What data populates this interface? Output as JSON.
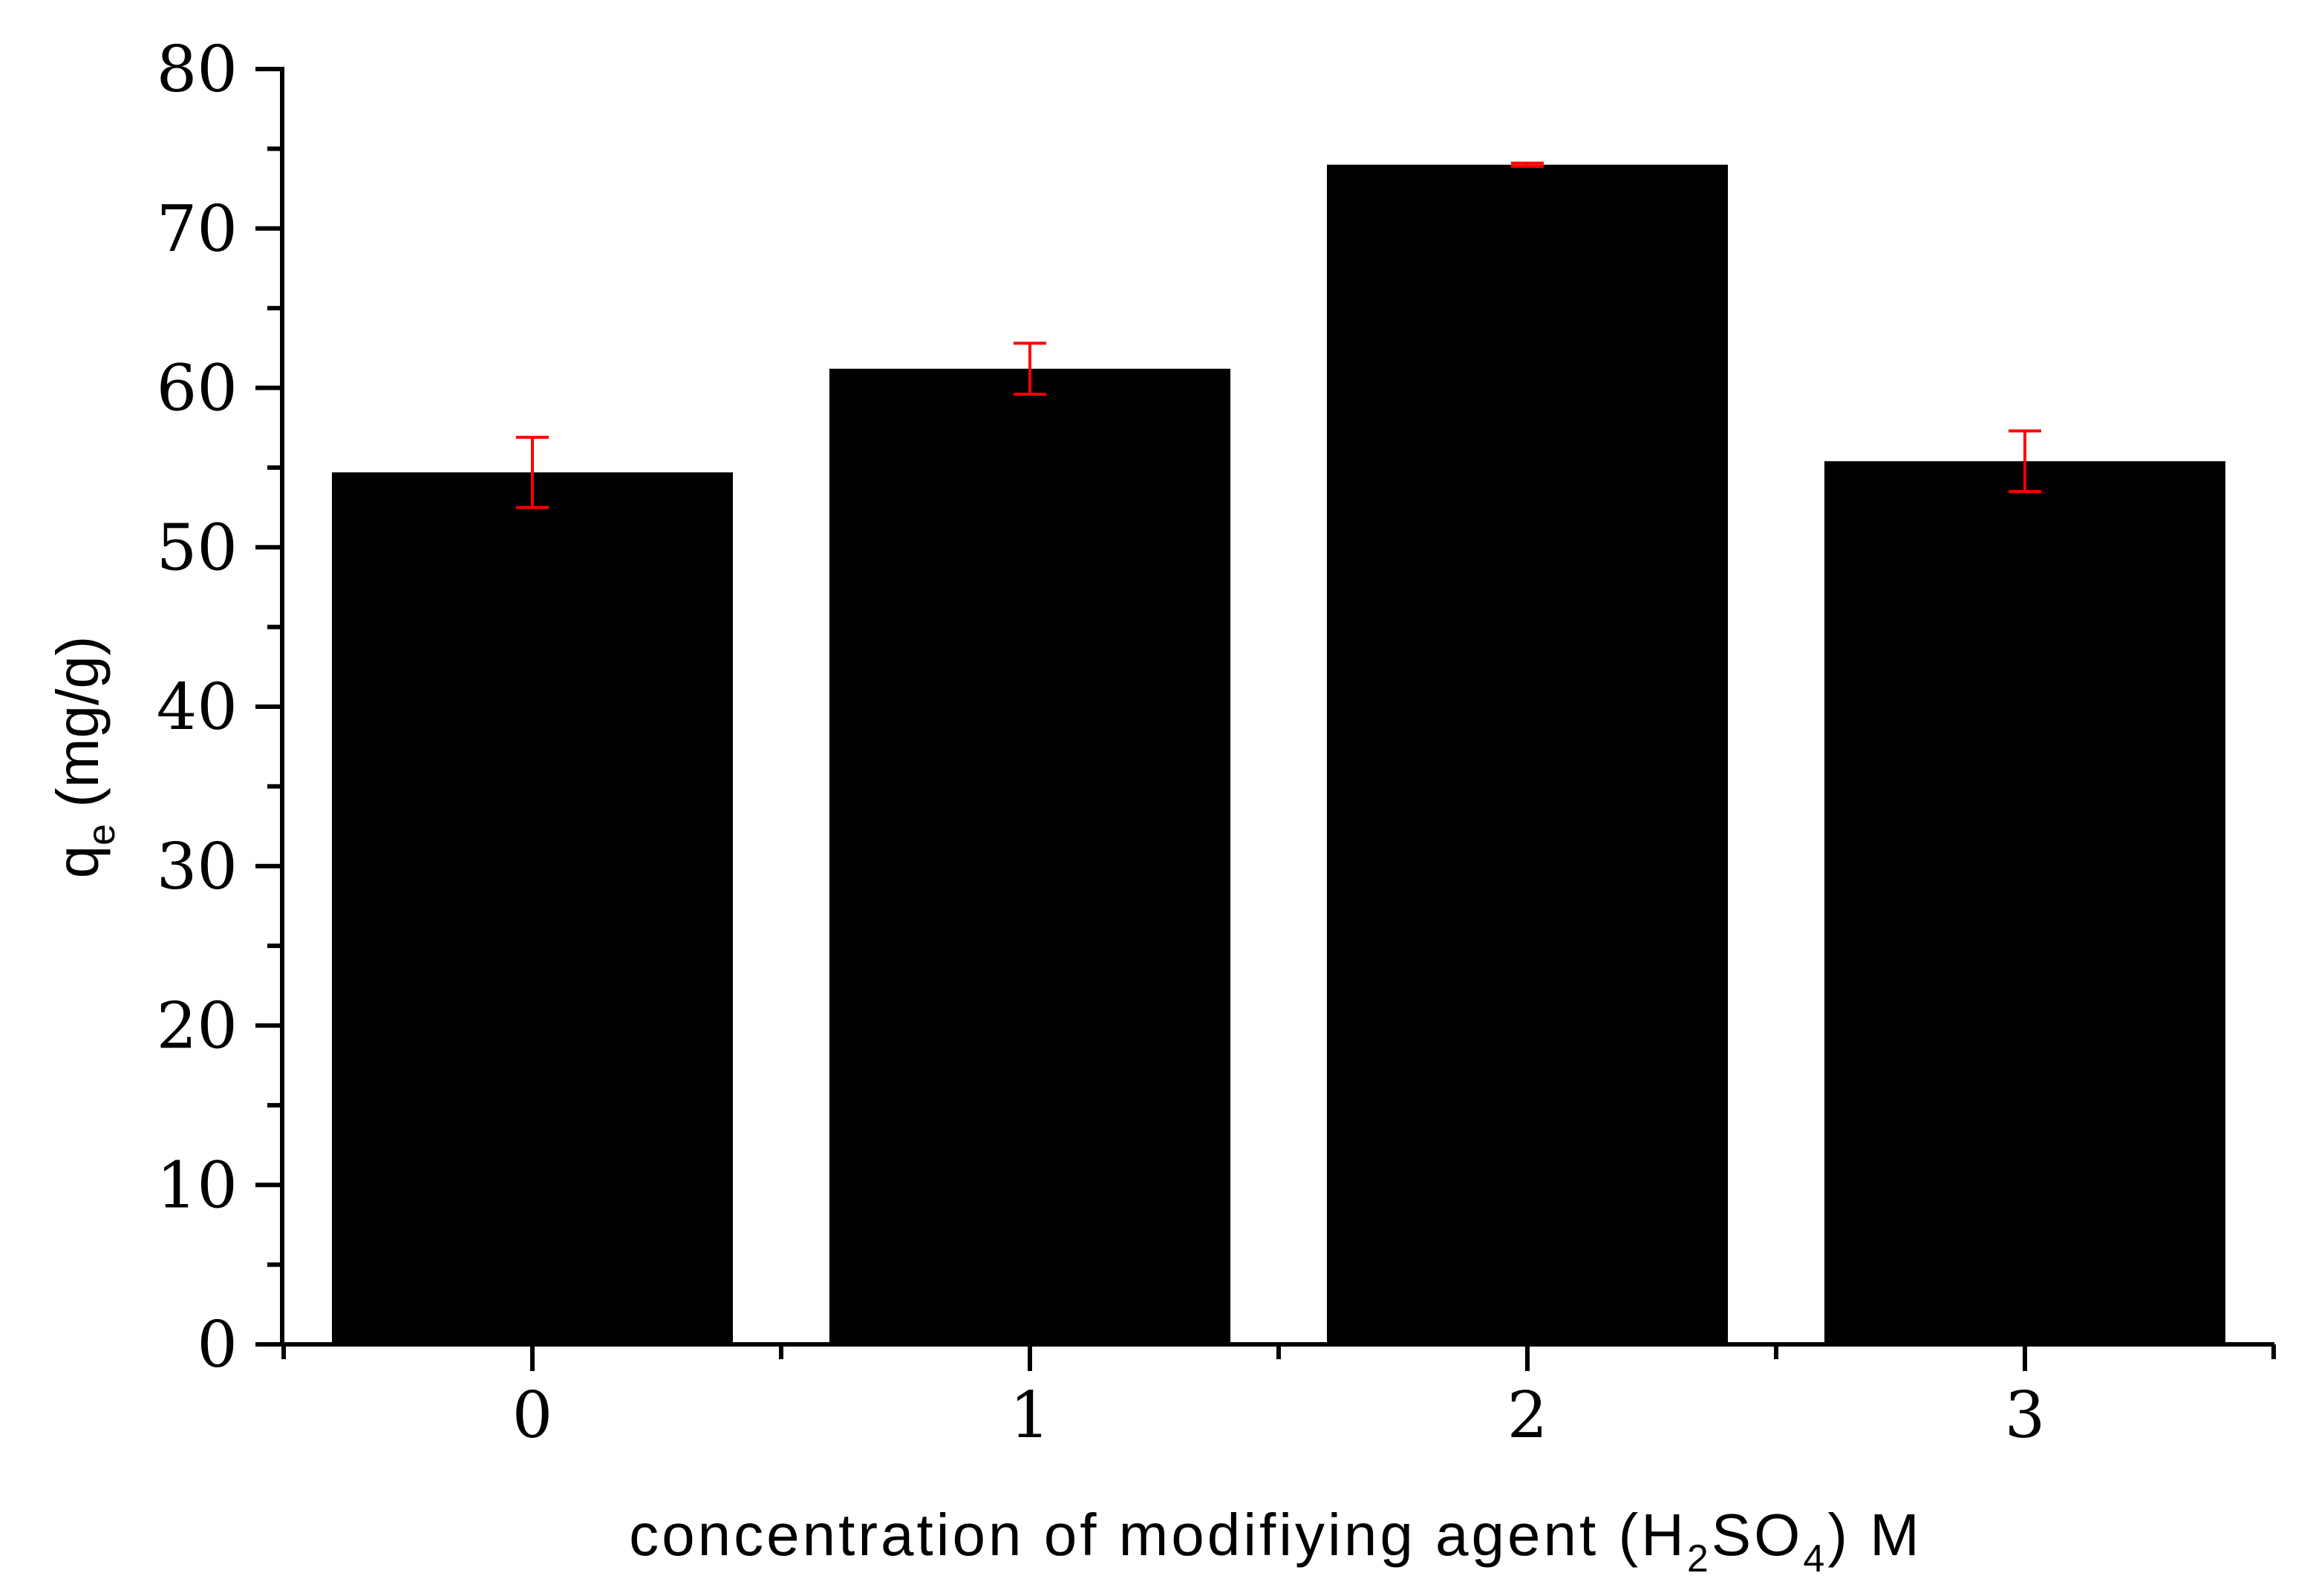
{
  "chart_data": {
    "type": "bar",
    "categories": [
      "0",
      "1",
      "2",
      "3"
    ],
    "values": [
      54.7,
      61.2,
      74.0,
      55.4
    ],
    "errors": [
      2.2,
      1.6,
      0.1,
      1.9
    ],
    "ylim": [
      0,
      80
    ],
    "yticks": [
      "0",
      "10",
      "20",
      "30",
      "40",
      "50",
      "60",
      "70",
      "80"
    ],
    "xlabel": {
      "prefix": "concentration of modifiying agent (H",
      "sub1": "2",
      "mid": "SO",
      "sub2": "4",
      "suffix": ") M"
    },
    "ylabel": {
      "main": "q",
      "sub": "e",
      "suffix": " (mg/g)"
    },
    "grid": false,
    "legend": "none",
    "colors": {
      "bar": "#000000",
      "error_bar": "#ff0000",
      "axis": "#000000"
    }
  }
}
